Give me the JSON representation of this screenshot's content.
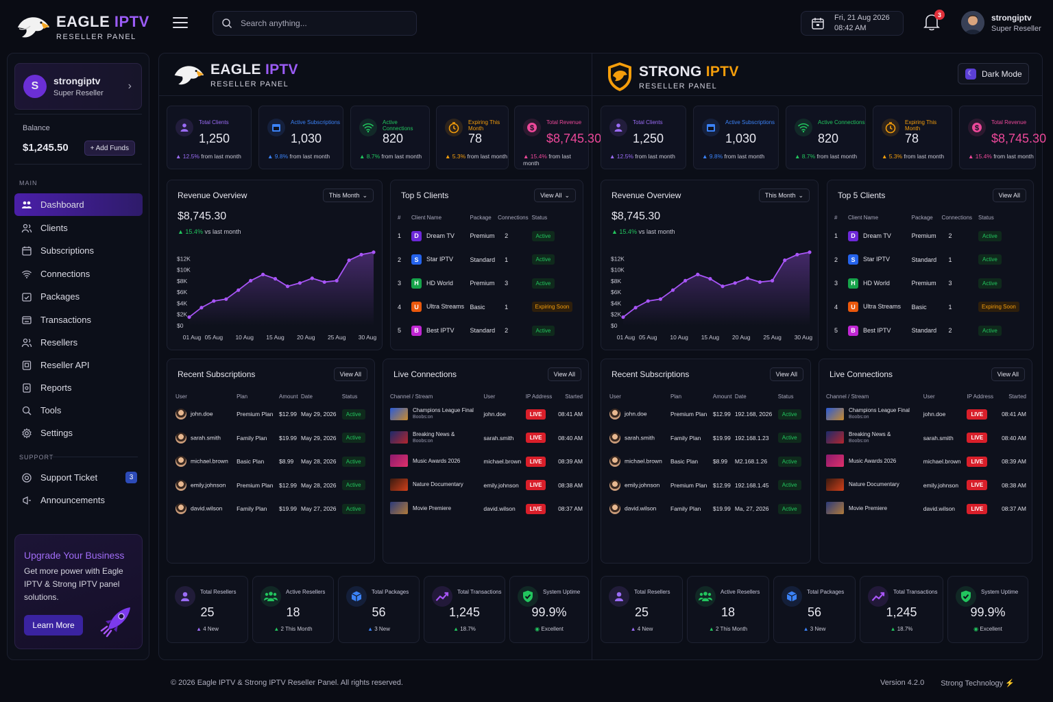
{
  "header": {
    "logo_title_a": "EAGLE ",
    "logo_title_b": "IPTV",
    "logo_sub": "RESELLER PANEL",
    "search_placeholder": "Search anything...",
    "date": "Fri, 21 Aug 2026",
    "time": "08:42 AM",
    "notif_count": "3",
    "user_name": "strongiptv",
    "user_role": "Super Reseller"
  },
  "sidebar": {
    "initial": "S",
    "user_name": "strongiptv",
    "user_role": "Super Reseller",
    "balance_label": "Balance",
    "balance": "$1,245.50",
    "add_funds": "+ Add Funds",
    "main_label": "MAIN",
    "support_label": "SUPPORT",
    "items": [
      "Dashboard",
      "Clients",
      "Subscriptions",
      "Connections",
      "Packages",
      "Transactions",
      "Resellers",
      "Reseller API",
      "Reports",
      "Tools",
      "Settings"
    ],
    "support_items": [
      "Support Ticket",
      "Announcements"
    ],
    "ticket_count": "3",
    "upgrade_title": "Upgrade Your Business",
    "upgrade_desc": "Get more power with Eagle IPTV & Strong IPTV panel solutions.",
    "learn_more": "Learn More"
  },
  "panels": [
    {
      "title_a": "EAGLE ",
      "title_b": "IPTV",
      "sub": "RESELLER PANEL"
    },
    {
      "title_a": "STRONG ",
      "title_b": "IPTV",
      "sub": "RESELLER PANEL"
    }
  ],
  "dark_mode": "Dark Mode",
  "stats": [
    {
      "label": "Total Clients",
      "value": "1,250",
      "delta": "12.5%",
      "suffix": " from last month",
      "color": "#9b6cf6"
    },
    {
      "label": "Active Subscriptions",
      "value": "1,030",
      "delta": "9.8%",
      "suffix": " from last month",
      "color": "#3b82f6"
    },
    {
      "label": "Active Connections",
      "value": "820",
      "delta": "8.7%",
      "suffix": " from last month",
      "color": "#22c55e"
    },
    {
      "label": "Expiring This Month",
      "value": "78",
      "delta": "5.3%",
      "suffix": " from last month",
      "color": "#f59e0b"
    },
    {
      "label": "Total Revenue",
      "value": "$8,745.30",
      "delta": "15.4%",
      "suffix": " from last month",
      "color": "#ec4899"
    }
  ],
  "revenue": {
    "title": "Revenue Overview",
    "period": "This Month",
    "amount": "$8,745.30",
    "delta": "15.4%",
    "delta_suffix": " vs last month",
    "y_ticks": [
      "$12K",
      "$10K",
      "$8K",
      "$6K",
      "$4K",
      "$2K",
      "$0"
    ],
    "x_ticks": [
      "01 Aug",
      "05 Aug",
      "10 Aug",
      "15 Aug",
      "20 Aug",
      "25 Aug",
      "30 Aug"
    ]
  },
  "chart_data": {
    "type": "area",
    "title": "Revenue Overview",
    "xlabel": "",
    "ylabel": "",
    "x": [
      1,
      3,
      5,
      7,
      9,
      11,
      13,
      15,
      17,
      19,
      21,
      23,
      25,
      27,
      29,
      31
    ],
    "values": [
      1800,
      3800,
      5200,
      5600,
      7500,
      9500,
      10800,
      9900,
      8300,
      9000,
      10000,
      9200,
      9500,
      13800,
      15000,
      15500
    ],
    "ylim": [
      0,
      16000
    ],
    "x_ticks": [
      "01 Aug",
      "05 Aug",
      "10 Aug",
      "15 Aug",
      "20 Aug",
      "25 Aug",
      "30 Aug"
    ],
    "y_ticks": [
      "$12K",
      "$10K",
      "$8K",
      "$6K",
      "$4K",
      "$2K",
      "$0"
    ],
    "color": "#a855f7"
  },
  "top_clients": {
    "title": "Top 5 Clients",
    "view_all": "View All",
    "headers": [
      "#",
      "Client Name",
      "Package",
      "Connections",
      "Status"
    ],
    "rows": [
      {
        "n": "1",
        "initial": "D",
        "color": "#6d28d9",
        "name": "Dream TV",
        "package": "Premium",
        "conn": "2",
        "status": "Active"
      },
      {
        "n": "2",
        "initial": "S",
        "color": "#2563eb",
        "name": "Star IPTV",
        "package": "Standard",
        "conn": "1",
        "status": "Active"
      },
      {
        "n": "3",
        "initial": "H",
        "color": "#16a34a",
        "name": "HD World",
        "package": "Premium",
        "conn": "3",
        "status": "Active"
      },
      {
        "n": "4",
        "initial": "U",
        "color": "#ea580c",
        "name": "Ultra Streams",
        "package": "Basic",
        "conn": "1",
        "status": "Expiring Soon"
      },
      {
        "n": "5",
        "initial": "B",
        "color": "#c026d3",
        "name": "Best IPTV",
        "package": "Standard",
        "conn": "2",
        "status": "Active"
      }
    ]
  },
  "recent_subs": {
    "title": "Recent Subscriptions",
    "view_all": "View All",
    "headers": [
      "User",
      "Plan",
      "Amount",
      "Date",
      "Status"
    ],
    "rows_a": [
      {
        "user": "john.doe",
        "plan": "Premium Plan",
        "amount": "$12.99",
        "date": "May 29, 2026",
        "status": "Active"
      },
      {
        "user": "sarah.smith",
        "plan": "Family Plan",
        "amount": "$19.99",
        "date": "May 29, 2026",
        "status": "Active"
      },
      {
        "user": "michael.brown",
        "plan": "Basic Plan",
        "amount": "$8.99",
        "date": "May 28, 2026",
        "status": "Active"
      },
      {
        "user": "emily.johnson",
        "plan": "Premium Plan",
        "amount": "$12.99",
        "date": "May 28, 2026",
        "status": "Active"
      },
      {
        "user": "david.wilson",
        "plan": "Family Plan",
        "amount": "$19.99",
        "date": "May 27, 2026",
        "status": "Active"
      }
    ],
    "rows_b": [
      {
        "user": "john.doe",
        "plan": "Premium Plan",
        "amount": "$12.99",
        "date": "192.168, 2026",
        "status": "Active"
      },
      {
        "user": "sarah.smith",
        "plan": "Family Plan",
        "amount": "$19.99",
        "date": "192.168.1.23",
        "status": "Active"
      },
      {
        "user": "michael.brown",
        "plan": "Basic Plan",
        "amount": "$8.99",
        "date": "M2.168.1.26",
        "status": "Active"
      },
      {
        "user": "emily.johnson",
        "plan": "Premium Plan",
        "amount": "$12.99",
        "date": "192.168.1.45",
        "status": "Active"
      },
      {
        "user": "david.wilson",
        "plan": "Family Plan",
        "amount": "$19.99",
        "date": "Ma, 27, 2026",
        "status": "Active"
      }
    ]
  },
  "live": {
    "title": "Live Connections",
    "view_all": "View All",
    "headers": [
      "Channel / Stream",
      "User",
      "IP Address",
      "Started"
    ],
    "rows": [
      {
        "ch": "Champions League Final",
        "ch2": "Boobs:on",
        "user": "john.doe",
        "status": "LIVE",
        "time": "08:41 AM",
        "c1": "#2a5bd7",
        "c2": "#c98a2c"
      },
      {
        "ch": "Breaking News &",
        "ch2": "Boobs:on",
        "user": "sarah.smith",
        "status": "LIVE",
        "time": "08:40 AM",
        "c1": "#1b2a6b",
        "c2": "#b3262e"
      },
      {
        "ch": "Music Awards 2026",
        "ch2": "",
        "user": "michael.brown",
        "status": "LIVE",
        "time": "08:39 AM",
        "c1": "#8b1a6e",
        "c2": "#e0306a"
      },
      {
        "ch": "Nature Documentary",
        "ch2": "",
        "user": "emily.johnson",
        "status": "LIVE",
        "time": "08:38 AM",
        "c1": "#3a1a10",
        "c2": "#d0401a"
      },
      {
        "ch": "Movie Premiere",
        "ch2": "",
        "user": "david.wilson",
        "status": "LIVE",
        "time": "08:37 AM",
        "c1": "#2b3a7a",
        "c2": "#b07a3a"
      }
    ]
  },
  "bottom_stats": [
    {
      "label": "Total Resellers",
      "value": "25",
      "delta": "4 New",
      "color": "#9b6cf6"
    },
    {
      "label": "Active Resellers",
      "value": "18",
      "delta": "2 This Month",
      "color": "#22c55e"
    },
    {
      "label": "Total Packages",
      "value": "56",
      "delta": "3 New",
      "color": "#3b82f6"
    },
    {
      "label": "Total Transactions",
      "value": "1,245",
      "delta": "18.7%",
      "color": "#a855f7"
    },
    {
      "label": "System Uptime",
      "value": "99.9%",
      "delta": "Excellent",
      "color": "#22c55e"
    }
  ],
  "footer": {
    "copyright": "© 2026 Eagle IPTV & Strong IPTV Reseller Panel. All rights reserved.",
    "version": "Version 4.2.0",
    "company": "Strong Technology"
  }
}
